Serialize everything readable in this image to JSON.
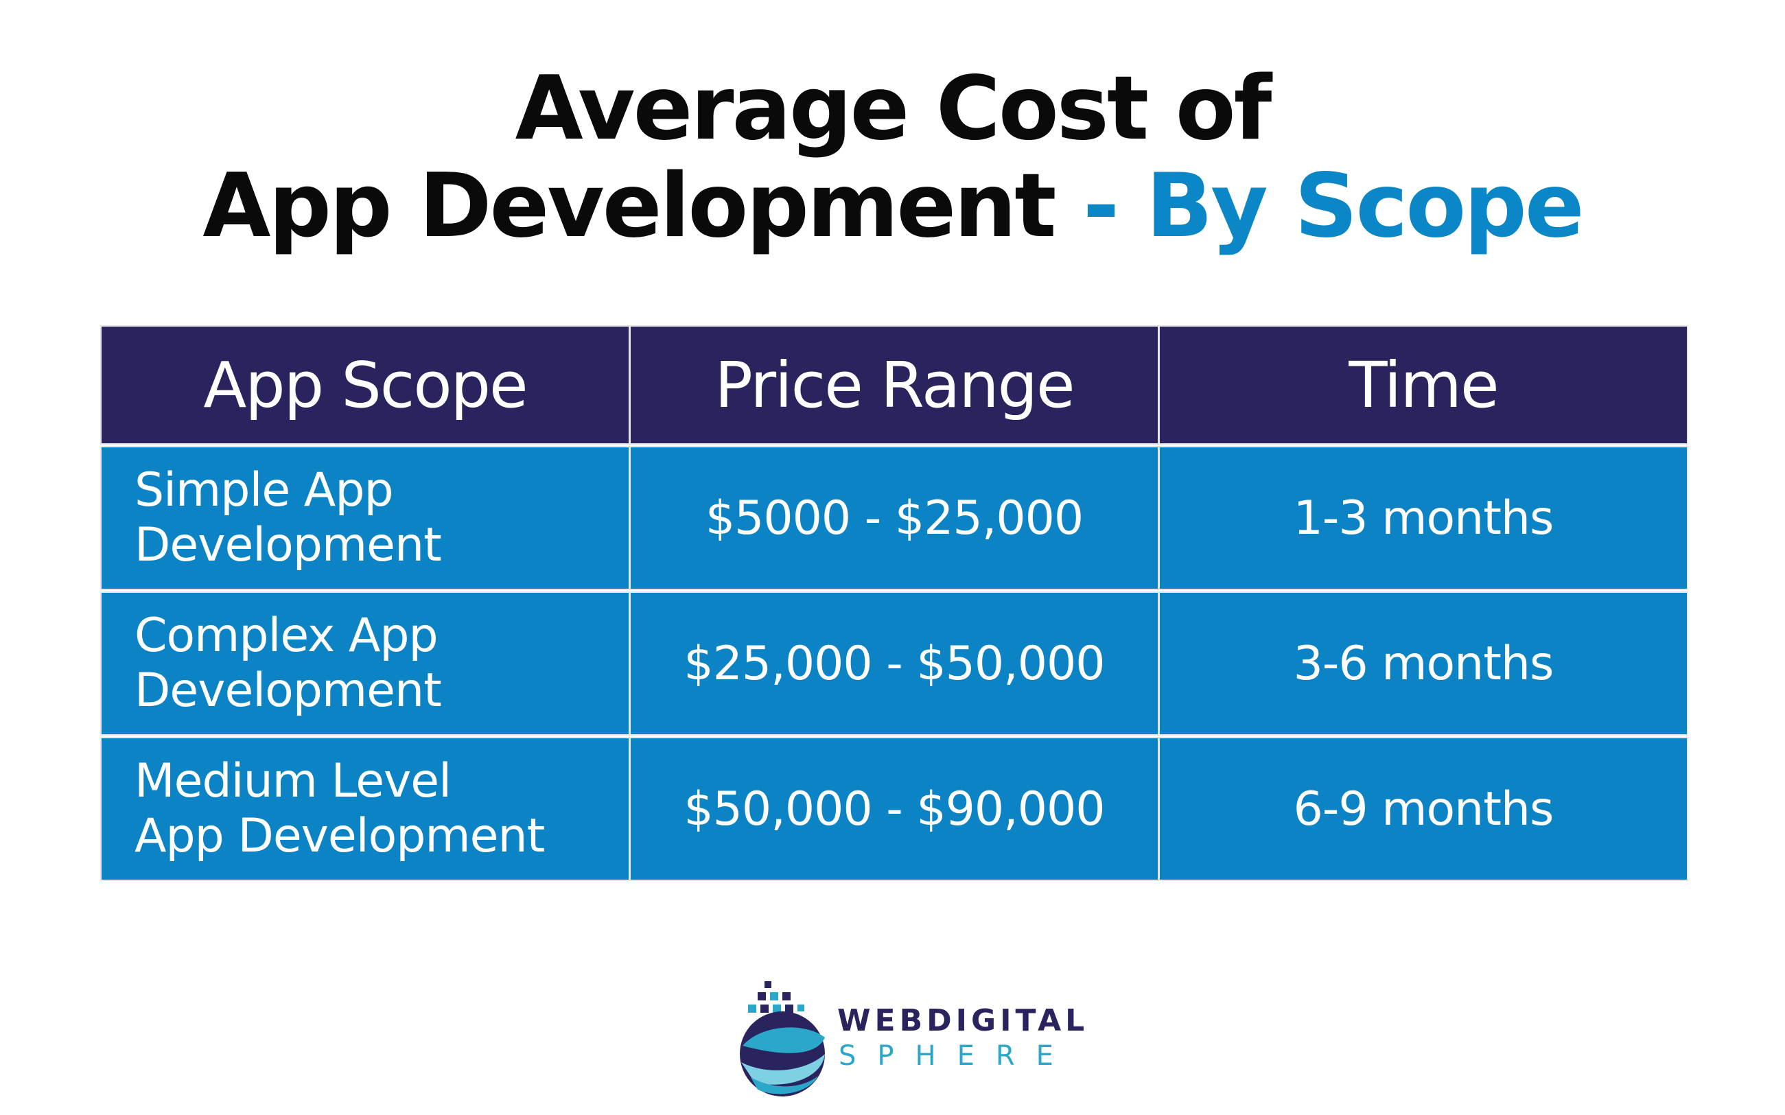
{
  "title": {
    "line1": "Average Cost of",
    "line2_main": "App Development",
    "line2_accent": " - By Scope"
  },
  "table": {
    "headers": [
      "App Scope",
      "Price Range",
      "Time"
    ],
    "rows": [
      {
        "scope": "Simple App\nDevelopment",
        "price": "$5000 - $25,000",
        "time": "1-3 months"
      },
      {
        "scope": "Complex App\nDevelopment",
        "price": "$25,000 - $50,000",
        "time": "3-6 months"
      },
      {
        "scope": "Medium Level\nApp Development",
        "price": "$50,000 - $90,000",
        "time": "6-9 months"
      }
    ]
  },
  "logo": {
    "word1": "WEBDIGITAL",
    "word2": "SPHERE",
    "icon": "globe-swirl-icon"
  },
  "colors": {
    "header_bg": "#29235e",
    "cell_bg": "#0b83c5",
    "accent": "#0b86c6",
    "logo_teal": "#2aa7c9"
  }
}
